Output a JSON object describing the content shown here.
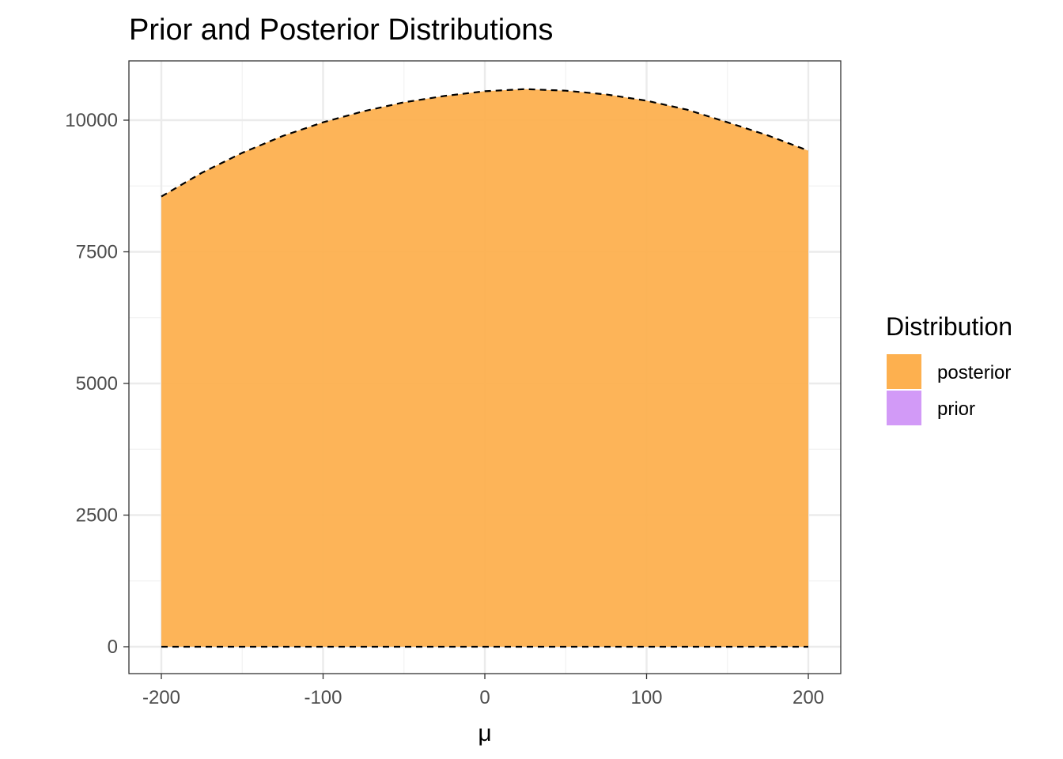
{
  "chart_data": {
    "type": "area",
    "title": "Prior and Posterior Distributions",
    "xlabel": "μ",
    "ylabel": "",
    "xlim": [
      -220,
      200
    ],
    "ylim": [
      -500,
      11000
    ],
    "x_ticks": [
      -200,
      -100,
      0,
      100,
      200
    ],
    "x_tick_labels": [
      "-200",
      "-100",
      "0",
      "100",
      "200"
    ],
    "y_ticks": [
      0,
      2500,
      5000,
      7500,
      10000
    ],
    "y_tick_labels": [
      "0",
      "2500",
      "5000",
      "7500",
      "10000"
    ],
    "grid": true,
    "legend": {
      "title": "Distribution",
      "position": "right",
      "entries": [
        {
          "label": "posterior",
          "color": "#fdb04f"
        },
        {
          "label": "prior",
          "color": "#d29af7"
        }
      ]
    },
    "series": [
      {
        "name": "posterior",
        "color": "#fdb04f",
        "line_style": "dashed",
        "x": [
          -200,
          -175,
          -150,
          -125,
          -100,
          -75,
          -50,
          -25,
          0,
          25,
          50,
          75,
          100,
          125,
          150,
          175,
          200
        ],
        "values": [
          8550,
          9000,
          9380,
          9700,
          9960,
          10170,
          10340,
          10460,
          10550,
          10590,
          10560,
          10490,
          10370,
          10200,
          9960,
          9710,
          9420
        ]
      },
      {
        "name": "prior",
        "color": "#d29af7",
        "line_style": "dashed",
        "x": [
          -200,
          200
        ],
        "values": [
          0,
          0
        ]
      }
    ]
  }
}
